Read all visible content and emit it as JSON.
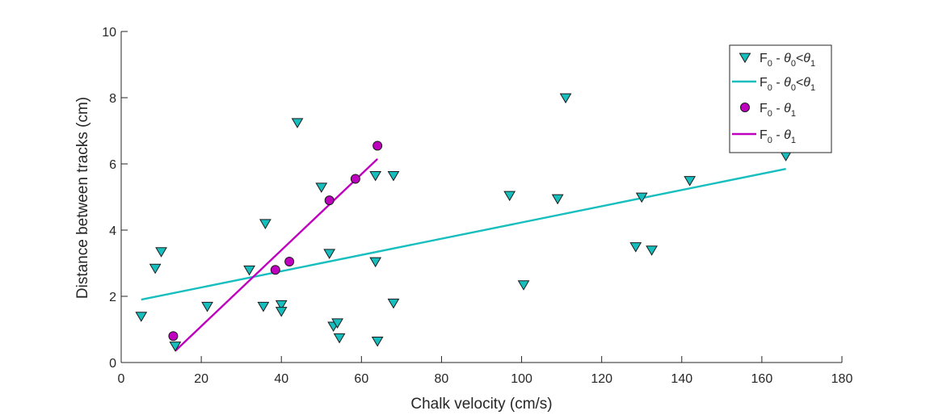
{
  "chart_data": {
    "type": "scatter",
    "title": "",
    "xlabel": "Chalk velocity (cm/s)",
    "ylabel": "Distance between tracks (cm)",
    "xlim": [
      0,
      180
    ],
    "ylim": [
      0,
      10
    ],
    "xticks": [
      0,
      20,
      40,
      60,
      80,
      100,
      120,
      140,
      160,
      180
    ],
    "yticks": [
      0,
      2,
      4,
      6,
      8,
      10
    ],
    "xtick_labels": [
      "0",
      "20",
      "40",
      "60",
      "80",
      "100",
      "120",
      "140",
      "160",
      "180"
    ],
    "ytick_labels": [
      "0",
      "2",
      "4",
      "6",
      "8",
      "10"
    ],
    "grid": false,
    "legend_position": "top-right",
    "legend": {
      "s1": {
        "pre": "F",
        "sub0": "0",
        "mid": " - ",
        "theta": "θ",
        "thsub0": "0",
        "lt": "<",
        "theta2": "θ",
        "thsub1": "1"
      },
      "s2": {
        "pre": "F",
        "sub0": "0",
        "mid": " - ",
        "theta": "θ",
        "thsub1": "1"
      }
    },
    "series": [
      {
        "name": "F0 - θ0<θ1",
        "kind": "scatter",
        "marker": "triangle-down",
        "color": "#17BEBE",
        "points": [
          [
            5,
            1.4
          ],
          [
            8.5,
            2.85
          ],
          [
            10,
            3.35
          ],
          [
            13.5,
            0.5
          ],
          [
            21.5,
            1.7
          ],
          [
            32,
            2.8
          ],
          [
            35.5,
            1.7
          ],
          [
            36,
            4.2
          ],
          [
            40,
            1.75
          ],
          [
            40,
            1.55
          ],
          [
            44,
            7.25
          ],
          [
            50,
            5.3
          ],
          [
            52,
            3.3
          ],
          [
            53,
            1.1
          ],
          [
            54,
            1.2
          ],
          [
            54.5,
            0.75
          ],
          [
            63.5,
            3.05
          ],
          [
            63.5,
            5.65
          ],
          [
            64,
            0.65
          ],
          [
            68,
            1.8
          ],
          [
            68,
            5.65
          ],
          [
            97,
            5.05
          ],
          [
            100.5,
            2.35
          ],
          [
            109,
            4.95
          ],
          [
            111,
            8.0
          ],
          [
            128.5,
            3.5
          ],
          [
            130,
            5.0
          ],
          [
            132.5,
            3.4
          ],
          [
            142,
            5.5
          ],
          [
            166,
            6.25
          ]
        ]
      },
      {
        "name": "F0 - θ0<θ1",
        "kind": "line",
        "color": "#17BEBE",
        "points": [
          [
            5,
            1.9
          ],
          [
            166,
            5.85
          ]
        ]
      },
      {
        "name": "F0 - θ1",
        "kind": "scatter",
        "marker": "circle",
        "color": "#BF00BF",
        "points": [
          [
            13,
            0.8
          ],
          [
            38.5,
            2.8
          ],
          [
            42,
            3.05
          ],
          [
            52,
            4.9
          ],
          [
            58.5,
            5.55
          ],
          [
            64,
            6.55
          ]
        ]
      },
      {
        "name": "F0 - θ1",
        "kind": "line",
        "color": "#BF00BF",
        "points": [
          [
            13.5,
            0.35
          ],
          [
            64,
            6.15
          ]
        ]
      }
    ]
  }
}
